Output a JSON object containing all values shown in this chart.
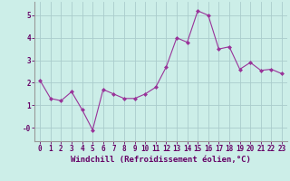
{
  "x": [
    0,
    1,
    2,
    3,
    4,
    5,
    6,
    7,
    8,
    9,
    10,
    11,
    12,
    13,
    14,
    15,
    16,
    17,
    18,
    19,
    20,
    21,
    22,
    23
  ],
  "y": [
    2.1,
    1.3,
    1.2,
    1.6,
    0.8,
    -0.1,
    1.7,
    1.5,
    1.3,
    1.3,
    1.5,
    1.8,
    2.7,
    4.0,
    3.8,
    5.2,
    5.0,
    3.5,
    3.6,
    2.6,
    2.9,
    2.55,
    2.6,
    2.4
  ],
  "line_color": "#993399",
  "marker": "D",
  "marker_size": 2,
  "bg_color": "#cceee8",
  "grid_color": "#aacccc",
  "xlabel": "Windchill (Refroidissement éolien,°C)",
  "ylim": [
    -0.6,
    5.6
  ],
  "xlim": [
    -0.5,
    23.5
  ],
  "ytick_labels": [
    "-0",
    "1",
    "2",
    "3",
    "4",
    "5"
  ],
  "ytick_vals": [
    0,
    1,
    2,
    3,
    4,
    5
  ],
  "xticks": [
    0,
    1,
    2,
    3,
    4,
    5,
    6,
    7,
    8,
    9,
    10,
    11,
    12,
    13,
    14,
    15,
    16,
    17,
    18,
    19,
    20,
    21,
    22,
    23
  ],
  "tick_fontsize": 5.5,
  "xlabel_fontsize": 6.5
}
